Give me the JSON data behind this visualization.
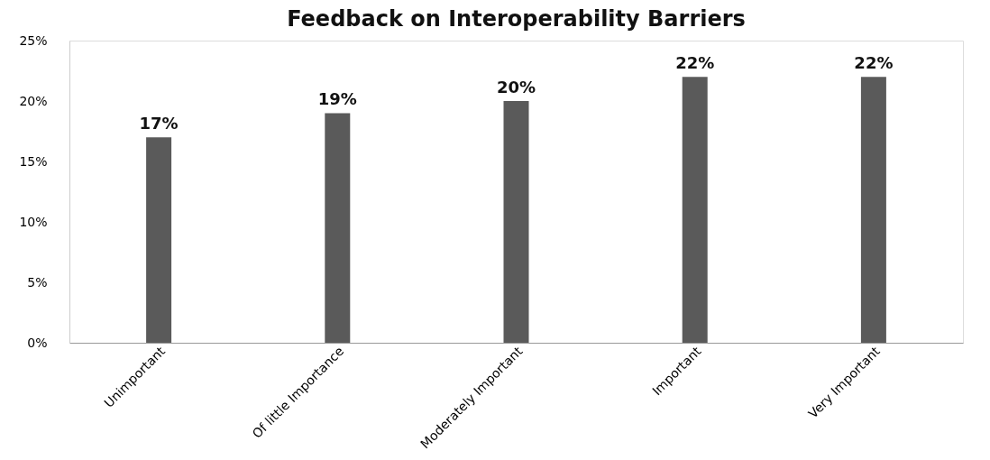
{
  "chart_data": {
    "type": "bar",
    "title": "Feedback on Interoperability Barriers",
    "categories": [
      "Unimportant",
      "Of little Importance",
      "Moderately Important",
      "Important",
      "Very Important"
    ],
    "values": [
      17,
      19,
      20,
      22,
      22
    ],
    "value_labels": [
      "17%",
      "19%",
      "20%",
      "22%",
      "22%"
    ],
    "color": "#5a5a5a",
    "ylim": [
      0,
      25
    ],
    "yticks": [
      {
        "value": 0,
        "label": "0%"
      },
      {
        "value": 5,
        "label": "5%"
      },
      {
        "value": 10,
        "label": "10%"
      },
      {
        "value": 15,
        "label": "15%"
      },
      {
        "value": 20,
        "label": "20%"
      },
      {
        "value": 25,
        "label": "25%"
      }
    ],
    "grid": false
  }
}
